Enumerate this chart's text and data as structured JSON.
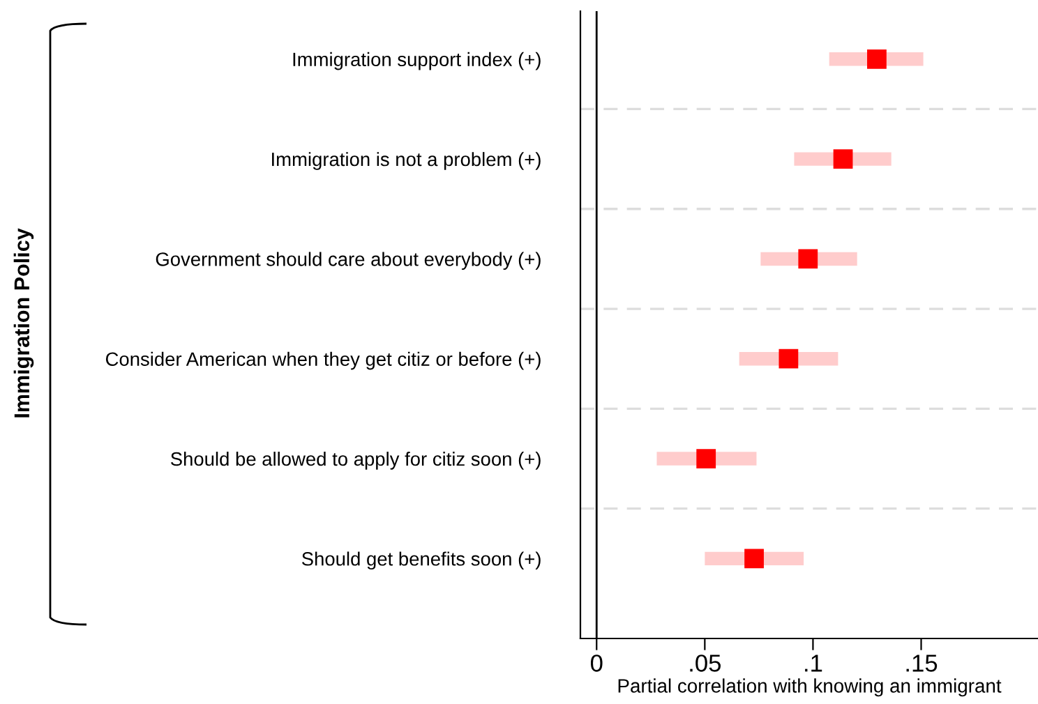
{
  "chart_data": {
    "type": "scatter",
    "orientation": "horizontal",
    "categories": [
      "Immigration support index (+)",
      "Immigration is not a problem (+)",
      "Government should care about everybody (+)",
      "Consider American when they get citiz or before (+)",
      "Should be allowed to apply for citiz soon (+)",
      "Should get benefits soon (+)"
    ],
    "color": "#ff0000",
    "values": [
      0.1295,
      0.1139,
      0.0977,
      0.0887,
      0.0506,
      0.0728
    ],
    "errors": [
      [
        0.1075,
        0.151
      ],
      [
        0.0913,
        0.1362
      ],
      [
        0.0758,
        0.1204
      ],
      [
        0.0659,
        0.1116
      ],
      [
        0.0278,
        0.0739
      ],
      [
        0.05,
        0.0957
      ]
    ],
    "xlabel": "Partial correlation with knowing an immigrant",
    "xlim": [
      -0.0075,
      0.204
    ],
    "xticks": [
      0,
      {
        "value": 0.05,
        "label": ".05"
      },
      {
        "value": 0.1,
        "label": ".1"
      },
      {
        "value": 0.15,
        "label": ".15"
      }
    ],
    "ref_lines": [
      {
        "axis": "x",
        "value": 0,
        "color": "#000000"
      }
    ],
    "grid": "y",
    "marker": "square",
    "legend": false,
    "annotations": [
      "Immigration Policy"
    ]
  }
}
